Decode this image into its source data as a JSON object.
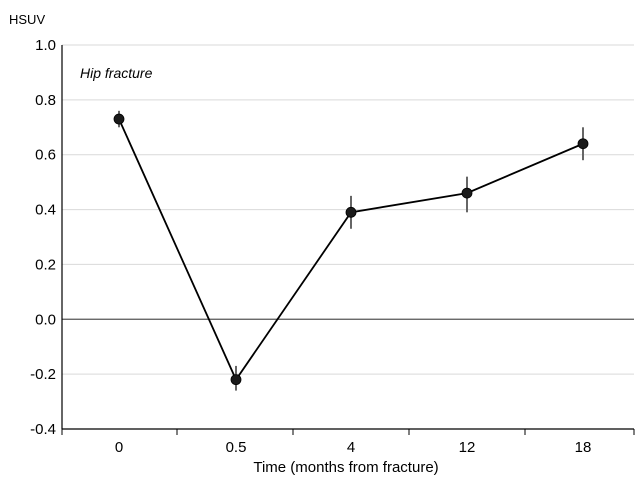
{
  "chart_data": {
    "type": "line",
    "title": "",
    "annotation": "Hip fracture",
    "ylabel": "HSUV",
    "xlabel": "Time (months from fracture)",
    "categories": [
      "0",
      "0.5",
      "4",
      "12",
      "18"
    ],
    "ylim": [
      -0.4,
      1.0
    ],
    "yticks": [
      "1.0",
      "0.8",
      "0.6",
      "0.4",
      "0.2",
      "0.0",
      "-0.2",
      "-0.4"
    ],
    "ytick_values": [
      1.0,
      0.8,
      0.6,
      0.4,
      0.2,
      0.0,
      -0.2,
      -0.4
    ],
    "grid": true,
    "legend": "none",
    "series": [
      {
        "values": [
          0.73,
          -0.22,
          0.39,
          0.46,
          0.64
        ],
        "error_low": [
          0.7,
          -0.26,
          0.33,
          0.39,
          0.58
        ],
        "error_high": [
          0.76,
          -0.17,
          0.45,
          0.52,
          0.7
        ],
        "line_color": "#000000",
        "marker_color": "#1a1a1a",
        "errorbar_color": "#666666"
      }
    ]
  }
}
